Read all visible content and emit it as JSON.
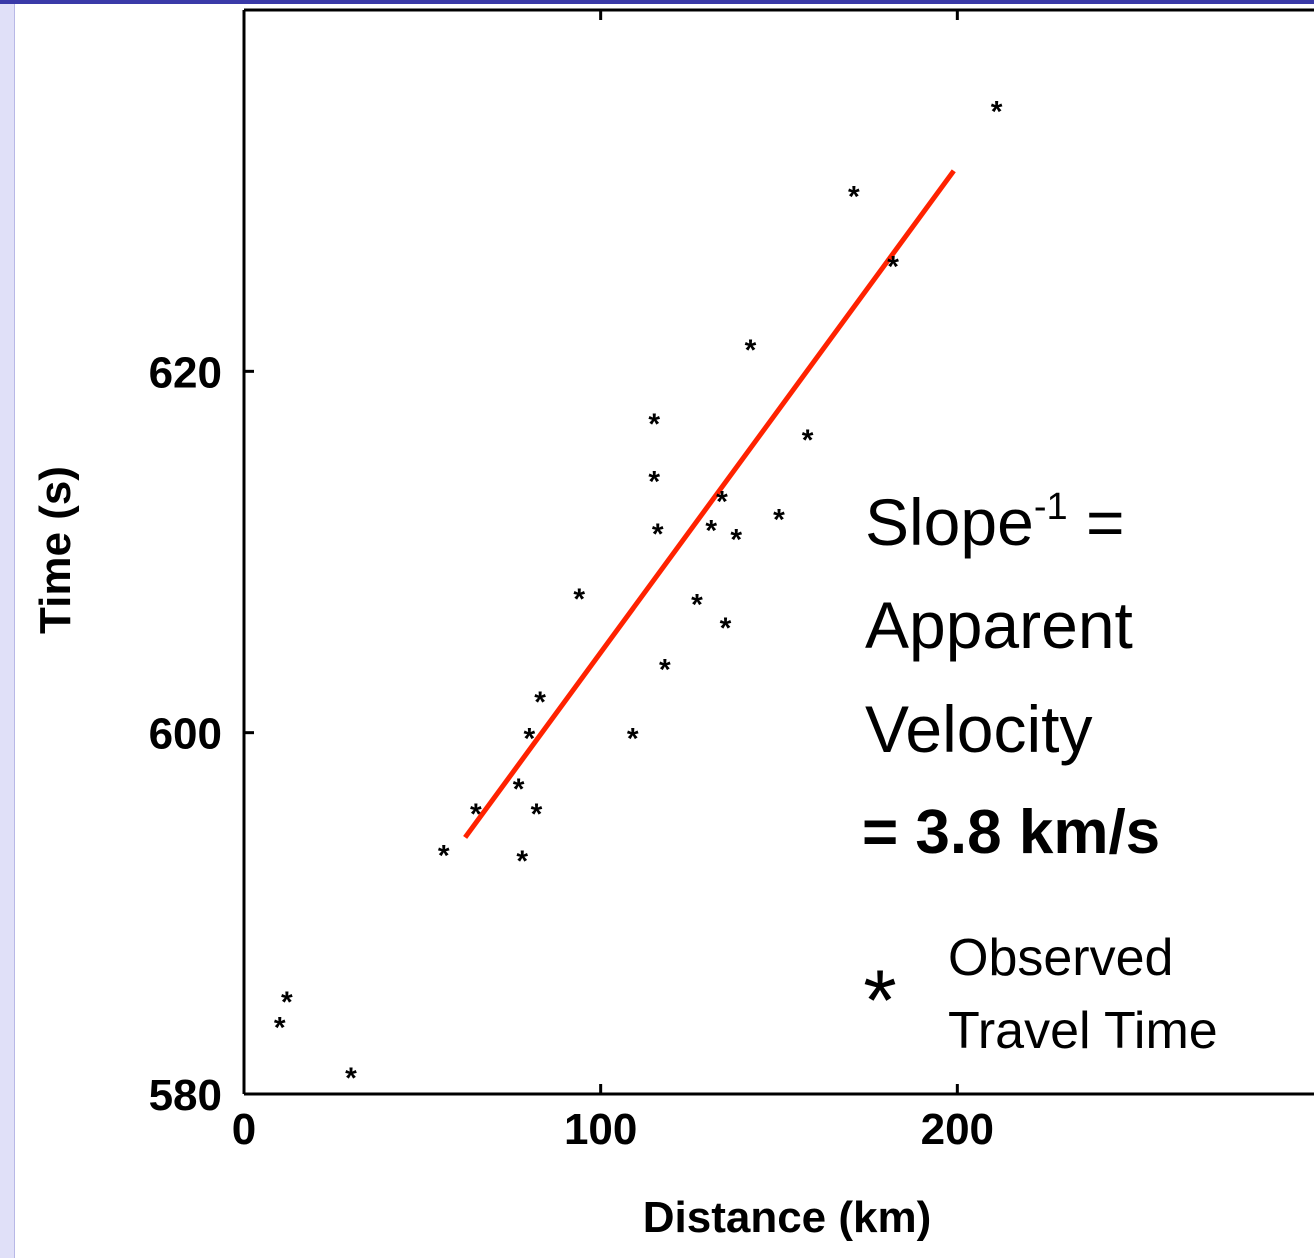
{
  "chart_data": {
    "type": "scatter",
    "xlabel": "Distance (km)",
    "ylabel": "Time (s)",
    "xlim": [
      0,
      300
    ],
    "ylim": [
      580,
      640
    ],
    "x_ticks": [
      0,
      100,
      200
    ],
    "y_ticks": [
      580,
      600,
      620
    ],
    "grid": false,
    "series": [
      {
        "name": "Observed Travel Time",
        "marker": "*",
        "x": [
          10,
          12,
          30,
          56,
          65,
          77,
          78,
          80,
          82,
          83,
          94,
          109,
          115,
          115,
          116,
          118,
          127,
          131,
          134,
          135,
          138,
          142,
          150,
          158,
          171,
          182,
          211
        ],
        "y": [
          583.8,
          585.2,
          581.0,
          593.3,
          595.6,
          597.0,
          593.0,
          599.8,
          595.6,
          601.8,
          607.5,
          599.8,
          617.2,
          614.0,
          611.1,
          603.6,
          607.2,
          611.3,
          612.9,
          605.9,
          610.8,
          621.3,
          611.9,
          616.3,
          629.8,
          625.9,
          634.5
        ]
      }
    ],
    "fit_line": {
      "color": "#ff2200",
      "x": [
        62,
        199
      ],
      "y": [
        594.2,
        631.1
      ]
    }
  },
  "annotation": {
    "slope_word": "Slope",
    "slope_exp": "-1",
    "slope_eq": " =",
    "line2": "Apparent",
    "line3": "Velocity",
    "result": "= 3.8 km/s",
    "result_color": "#ff0000"
  },
  "legend": {
    "marker": "*",
    "line1": "Observed",
    "line2": "Travel Time"
  }
}
